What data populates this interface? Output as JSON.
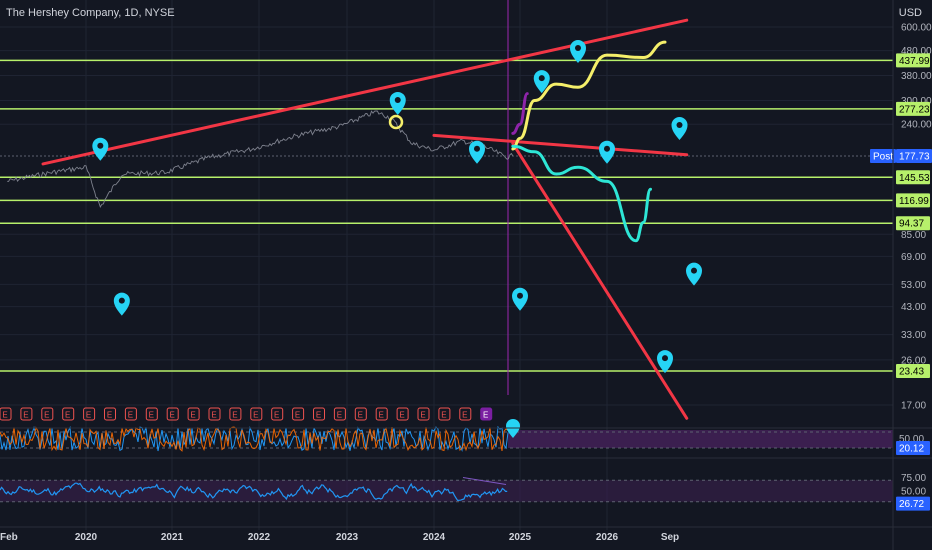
{
  "header": {
    "symbol_title": "The Hershey Company, 1D, NYSE",
    "currency": "USD"
  },
  "colors": {
    "background": "#131722",
    "grid": "#1f2433",
    "hline": "#b7f06b",
    "trend": "#f23645",
    "yellow_path": "#f5ef6a",
    "purple_path": "#8e24aa",
    "cyan_path": "#2ee6d6",
    "marker": "#26d4f5",
    "price_line": "#d1d4dc",
    "vline": "#9c27b0",
    "rsi_line": "#2196f3",
    "osc_fill": "#3b1f4f",
    "earnings_badge": "#ef5350",
    "text": "#b2b5be"
  },
  "chart_data": [
    {
      "type": "line",
      "title": "The Hershey Company, 1D, NYSE",
      "y_scale": "log",
      "ylim": [
        14,
        700
      ],
      "y_axis_ticks": [
        "600.00",
        "480.00",
        "380.00",
        "300.00",
        "240.00",
        "85.00",
        "69.00",
        "53.00",
        "43.00",
        "33.00",
        "26.00",
        "17.00"
      ],
      "horizontal_levels": [
        "437.99",
        "277.23",
        "145.53",
        "116.99",
        "94.37",
        "23.43"
      ],
      "last_price_tag": {
        "label": "Post",
        "value": "177.73"
      },
      "x_axis_ticks": [
        "Feb",
        "2020",
        "2021",
        "2022",
        "2023",
        "2024",
        "2025",
        "2026",
        "Sep"
      ],
      "price_series": {
        "x": [
          "2019-02",
          "2019-08",
          "2020-01",
          "2020-03",
          "2020-06",
          "2020-12",
          "2021-06",
          "2021-12",
          "2022-06",
          "2022-12",
          "2023-05",
          "2023-07",
          "2023-10",
          "2024-01",
          "2024-05",
          "2024-08",
          "2024-11",
          "2024-12"
        ],
        "y": [
          140,
          152,
          160,
          110,
          150,
          152,
          175,
          190,
          215,
          235,
          270,
          255,
          200,
          188,
          205,
          195,
          176,
          178
        ]
      },
      "trendlines": [
        {
          "x": [
            "2019-07",
            "2026-12"
          ],
          "y": [
            165,
            640
          ]
        },
        {
          "x": [
            "2024-01",
            "2026-12"
          ],
          "y": [
            216,
            180
          ]
        },
        {
          "x": [
            "2024-12",
            "2026-12"
          ],
          "y": [
            200,
            15
          ]
        }
      ],
      "projection_paths": [
        {
          "color": "yellow",
          "x": [
            "2024-12",
            "2025-01",
            "2025-03",
            "2025-06",
            "2025-09",
            "2026-01",
            "2026-06",
            "2026-09"
          ],
          "y": [
            190,
            210,
            300,
            350,
            340,
            460,
            450,
            520
          ]
        },
        {
          "color": "purple",
          "x": [
            "2024-12",
            "2025-01",
            "2025-02"
          ],
          "y": [
            220,
            240,
            320
          ]
        },
        {
          "color": "cyan",
          "x": [
            "2024-12",
            "2025-03",
            "2025-06",
            "2025-09",
            "2026-01",
            "2026-05",
            "2026-06",
            "2026-07"
          ],
          "y": [
            195,
            185,
            150,
            160,
            140,
            80,
            95,
            130
          ]
        }
      ],
      "markers": [
        {
          "x": "2020-03",
          "y": 185
        },
        {
          "x": "2020-06",
          "y": 43
        },
        {
          "x": "2023-08",
          "y": 285
        },
        {
          "x": "2024-07",
          "y": 180
        },
        {
          "x": "2025-01",
          "y": 45
        },
        {
          "x": "2025-04",
          "y": 350
        },
        {
          "x": "2025-09",
          "y": 465
        },
        {
          "x": "2026-01",
          "y": 180
        },
        {
          "x": "2026-09",
          "y": 25
        },
        {
          "x": "2026-11",
          "y": 225
        },
        {
          "x": "2027-01",
          "y": 57
        }
      ],
      "earnings_badges": "E"
    },
    {
      "type": "line",
      "title": "",
      "ylim": [
        0,
        100
      ],
      "y_axis_ticks": [
        "50.00"
      ],
      "current_value_tag": "20.12"
    },
    {
      "type": "line",
      "title": "",
      "ylim": [
        0,
        100
      ],
      "y_axis_ticks": [
        "75.00",
        "50.00"
      ],
      "current_value_tag": "26.72"
    }
  ]
}
